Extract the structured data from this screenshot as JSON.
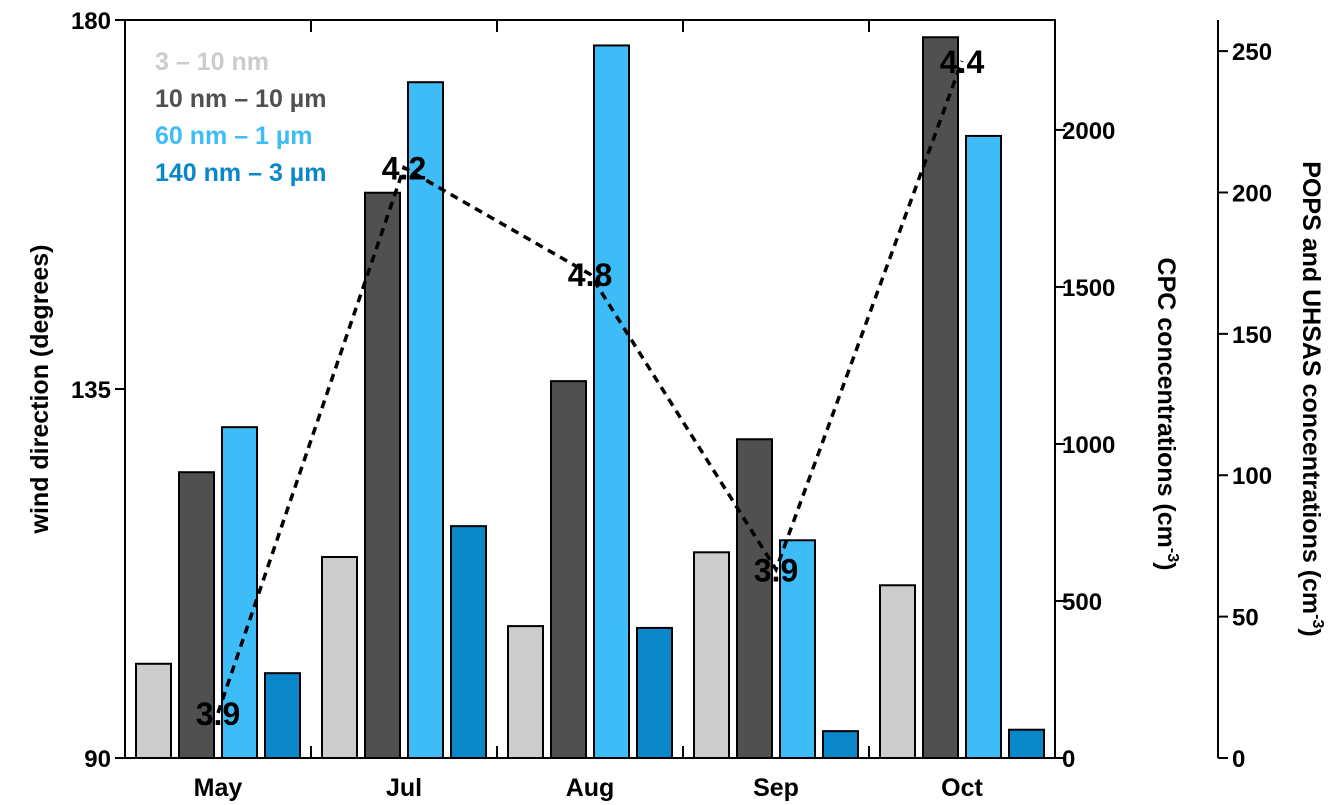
{
  "chart_data": {
    "type": "bar",
    "categories": [
      "May",
      "Jul",
      "Aug",
      "Sep",
      "Oct"
    ],
    "left_axis": {
      "label": "wind direction (degrees)",
      "range": [
        90,
        180
      ],
      "ticks": [
        "90",
        "135",
        "180"
      ]
    },
    "right_axis_1": {
      "label_main": "CPC concentrations (cm",
      "label_sup": "-3",
      "label_end": ")",
      "range": [
        0,
        2350
      ],
      "ticks": [
        "0",
        "500",
        "1000",
        "1500",
        "2000"
      ]
    },
    "right_axis_2": {
      "label_main": "POPS and UHSAS concentrations (cm",
      "label_sup": "-3",
      "label_end": ")",
      "range": [
        0,
        261
      ],
      "ticks": [
        "0",
        "50",
        "100",
        "150",
        "200",
        "250"
      ]
    },
    "series": [
      {
        "name": "3 – 10 nm",
        "axis": "cpc",
        "color": "#cccccc",
        "values": [
          300,
          640,
          420,
          655,
          550
        ]
      },
      {
        "name": "10 nm – 10 µm",
        "axis": "cpc",
        "color": "#505050",
        "values": [
          910,
          1800,
          1200,
          1015,
          2295
        ]
      },
      {
        "name": "60 nm – 1 µm",
        "axis": "pops",
        "color": "#3dbcf8",
        "values": [
          117,
          239,
          252,
          77,
          220
        ]
      },
      {
        "name": "140 nm – 3 µm",
        "axis": "pops",
        "color": "#0a87c8",
        "values": [
          30,
          82,
          46,
          9.5,
          10
        ]
      }
    ],
    "wind_line": {
      "style": "dashed",
      "color": "#000000",
      "values": [
        95.5,
        162,
        149,
        113,
        175
      ],
      "labels": [
        "3.9",
        "4.2",
        "4.8",
        "3.9",
        "4.4"
      ]
    },
    "legend_position": "top-left",
    "grid": false
  }
}
